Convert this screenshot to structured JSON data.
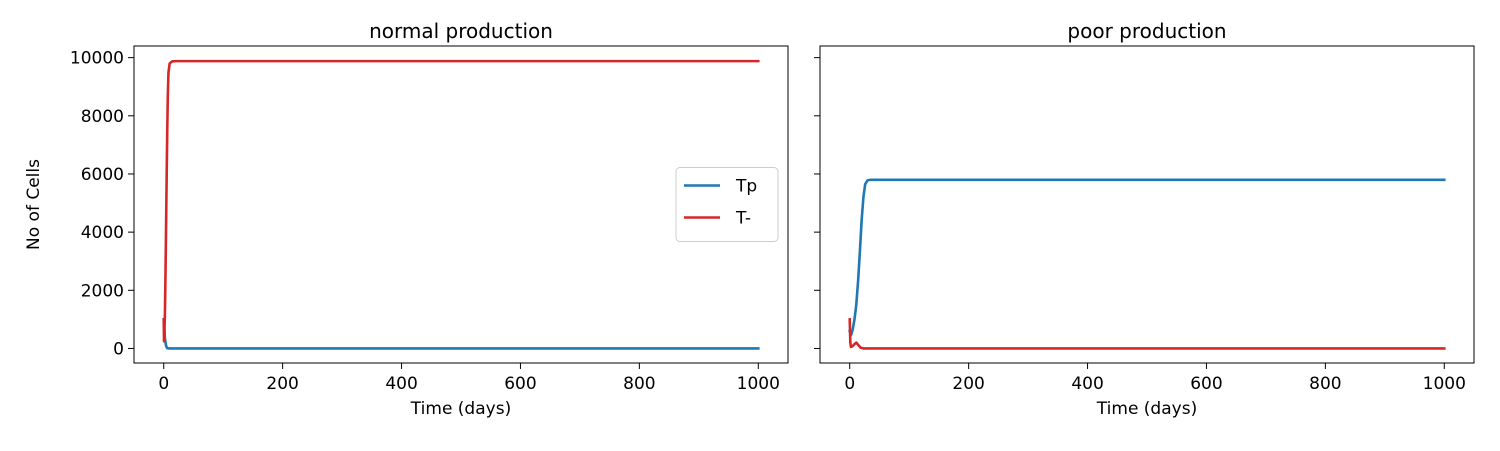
{
  "chart_data": [
    {
      "type": "line",
      "title": "normal production",
      "xlabel": "Time (days)",
      "ylabel": "No of Cells",
      "xlim": [
        -50,
        1050
      ],
      "ylim": [
        -500,
        10400
      ],
      "xticks": [
        0,
        200,
        400,
        600,
        800,
        1000
      ],
      "yticks": [
        0,
        2000,
        4000,
        6000,
        8000,
        10000
      ],
      "show_yticklabels": true,
      "grid": false,
      "legend": {
        "placement": "center-right",
        "entries": [
          "Tp",
          "T-"
        ]
      },
      "series": [
        {
          "name": "Tp",
          "color": "#1f77b4",
          "points": [
            [
              0,
              1000
            ],
            [
              1,
              700
            ],
            [
              2,
              350
            ],
            [
              4,
              80
            ],
            [
              6,
              10
            ],
            [
              10,
              0
            ],
            [
              1000,
              0
            ]
          ]
        },
        {
          "name": "T-",
          "color": "#d62728",
          "points": [
            [
              0,
              1000
            ],
            [
              0.5,
              250
            ],
            [
              1,
              400
            ],
            [
              2,
              1200
            ],
            [
              3,
              2600
            ],
            [
              4,
              4300
            ],
            [
              5,
              6000
            ],
            [
              6,
              7600
            ],
            [
              7,
              8800
            ],
            [
              8,
              9500
            ],
            [
              10,
              9800
            ],
            [
              14,
              9870
            ],
            [
              20,
              9880
            ],
            [
              1000,
              9880
            ]
          ]
        }
      ]
    },
    {
      "type": "line",
      "title": "poor production",
      "xlabel": "Time (days)",
      "ylabel": "",
      "xlim": [
        -50,
        1050
      ],
      "ylim": [
        -500,
        10400
      ],
      "xticks": [
        0,
        200,
        400,
        600,
        800,
        1000
      ],
      "yticks": [
        0,
        2000,
        4000,
        6000,
        8000,
        10000
      ],
      "show_yticklabels": false,
      "grid": false,
      "series": [
        {
          "name": "Tp",
          "color": "#1f77b4",
          "points": [
            [
              0,
              600
            ],
            [
              2,
              450
            ],
            [
              5,
              650
            ],
            [
              8,
              1000
            ],
            [
              11,
              1500
            ],
            [
              14,
              2300
            ],
            [
              17,
              3300
            ],
            [
              20,
              4400
            ],
            [
              23,
              5200
            ],
            [
              26,
              5650
            ],
            [
              30,
              5780
            ],
            [
              35,
              5800
            ],
            [
              1000,
              5800
            ]
          ]
        },
        {
          "name": "T-",
          "color": "#d62728",
          "points": [
            [
              0,
              1000
            ],
            [
              1,
              200
            ],
            [
              2,
              50
            ],
            [
              5,
              80
            ],
            [
              8,
              150
            ],
            [
              11,
              200
            ],
            [
              14,
              130
            ],
            [
              18,
              30
            ],
            [
              24,
              0
            ],
            [
              1000,
              0
            ]
          ]
        }
      ]
    }
  ]
}
